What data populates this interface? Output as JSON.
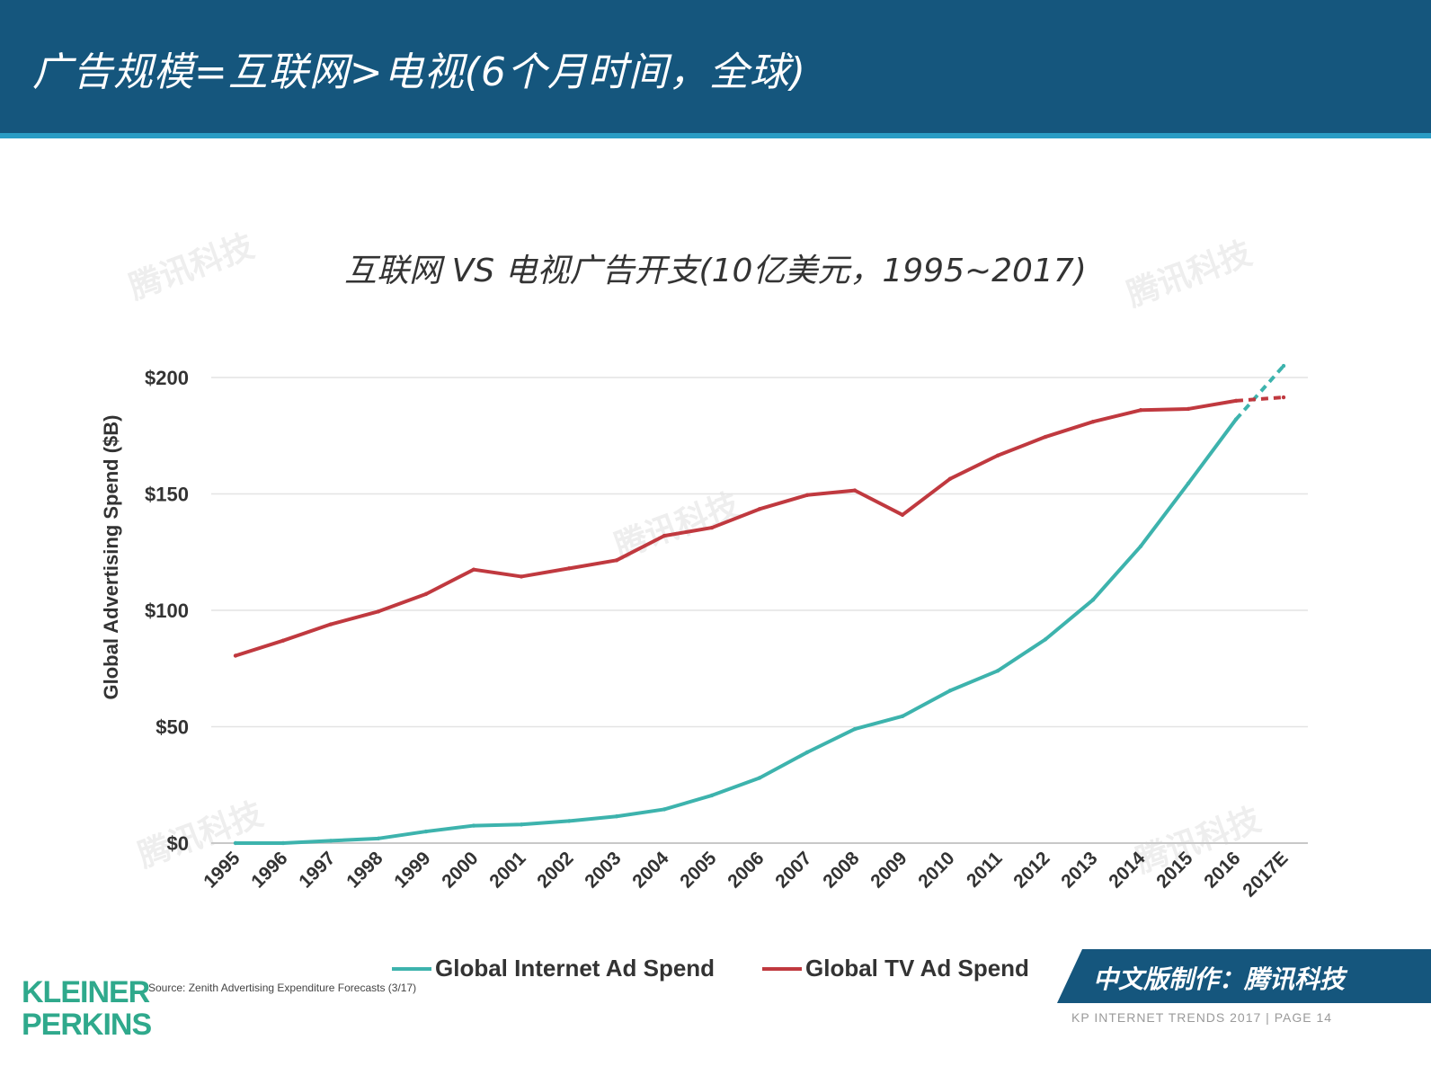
{
  "header": {
    "title": "广告规模=互联网>电视(6个月时间，全球)"
  },
  "watermark": {
    "text": "腾讯科技"
  },
  "chart_data": {
    "type": "line",
    "title": "互联网 VS 电视广告开支(10亿美元，1995~2017)",
    "ylabel": "Global Advertising Spend ($B)",
    "xlabel": "",
    "ylim": [
      0,
      200
    ],
    "yticks": [
      0,
      50,
      100,
      150,
      200
    ],
    "ytick_labels": [
      "$0",
      "$50",
      "$100",
      "$150",
      "$200"
    ],
    "grid": true,
    "legend_position": "bottom",
    "categories": [
      "1995",
      "1996",
      "1997",
      "1998",
      "1999",
      "2000",
      "2001",
      "2002",
      "2003",
      "2004",
      "2005",
      "2006",
      "2007",
      "2008",
      "2009",
      "2010",
      "2011",
      "2012",
      "2013",
      "2014",
      "2015",
      "2016",
      "2017E"
    ],
    "series": [
      {
        "name": "Global Internet Ad Spend",
        "color": "#3db3ad",
        "values": [
          0,
          0,
          1,
          2,
          5,
          7.5,
          8,
          9.5,
          11.5,
          14.5,
          20.5,
          28,
          39,
          49,
          54.5,
          65.5,
          74,
          87.5,
          104.5,
          127.5,
          154.5,
          182,
          205
        ],
        "estimated_from_index": 21
      },
      {
        "name": "Global TV Ad Spend",
        "color": "#c0393f",
        "values": [
          80.5,
          87,
          94,
          99.5,
          107,
          117.5,
          114.5,
          118,
          121.5,
          132,
          135.5,
          143.5,
          149.5,
          151.5,
          141,
          156.5,
          166.5,
          174.5,
          181,
          186,
          186.5,
          190,
          191.5
        ],
        "estimated_from_index": 21
      }
    ]
  },
  "source": "Source: Zenith Advertising Expenditure Forecasts (3/17)",
  "logo": {
    "line1": "KLEINER",
    "line2": "PERKINS"
  },
  "badge": {
    "text": "中文版制作：腾讯科技"
  },
  "footer": {
    "note": "KP INTERNET TRENDS 2017  |  PAGE 14"
  }
}
